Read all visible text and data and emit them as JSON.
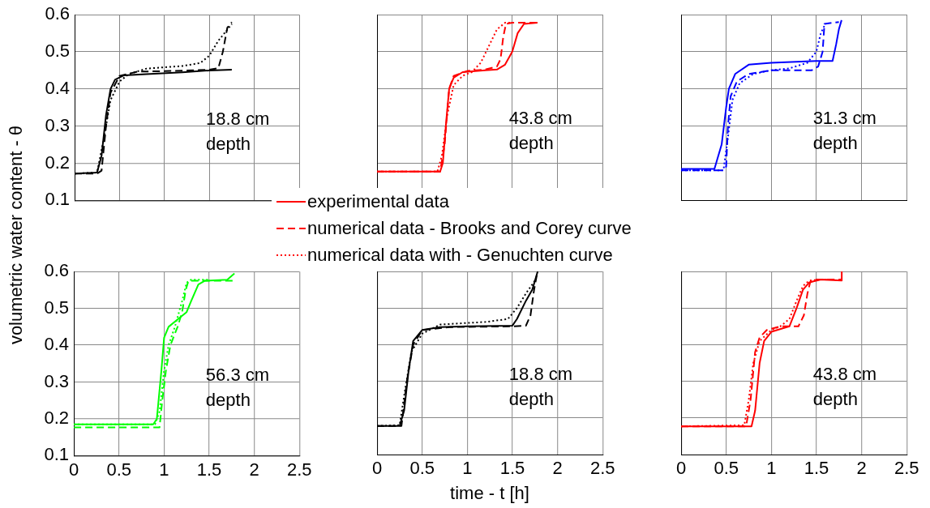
{
  "chart_data": [
    {
      "type": "line",
      "ylabel": "volumetric water content - θ",
      "annotations": [
        "18.8 cm\ndepth"
      ],
      "xlim": [
        0,
        2.5
      ],
      "ylim": [
        0.1,
        0.6
      ],
      "xticks": [
        0,
        0.5,
        1,
        1.5,
        2,
        2.5
      ],
      "yticks": [
        0.1,
        0.2,
        0.3,
        0.4,
        0.5,
        0.6
      ],
      "grid": true,
      "tick_labels": "y",
      "marker": "none",
      "series": [
        {
          "color": "#000000",
          "line_style": "solid",
          "x": [
            0,
            0.25,
            0.3,
            0.35,
            0.4,
            0.45,
            0.55,
            0.8,
            1.2,
            1.5,
            1.75
          ],
          "values": [
            0.172,
            0.175,
            0.22,
            0.33,
            0.4,
            0.425,
            0.437,
            0.44,
            0.445,
            0.45,
            0.452
          ]
        },
        {
          "color": "#000000",
          "line_style": "dashed",
          "x": [
            0,
            0.25,
            0.3,
            0.35,
            0.4,
            0.5,
            0.7,
            1.0,
            1.5,
            1.6,
            1.65,
            1.7,
            1.75
          ],
          "values": [
            0.172,
            0.172,
            0.18,
            0.3,
            0.39,
            0.435,
            0.447,
            0.448,
            0.452,
            0.456,
            0.5,
            0.565,
            0.58
          ]
        },
        {
          "color": "#000000",
          "line_style": "dotted",
          "x": [
            0,
            0.25,
            0.32,
            0.4,
            0.5,
            0.6,
            0.8,
            1.2,
            1.4,
            1.5,
            1.6,
            1.7,
            1.75
          ],
          "values": [
            0.172,
            0.175,
            0.26,
            0.37,
            0.42,
            0.44,
            0.455,
            0.462,
            0.47,
            0.49,
            0.53,
            0.56,
            0.575
          ]
        }
      ]
    },
    {
      "type": "line",
      "annotations": [
        "43.8 cm\ndepth"
      ],
      "xlim": [
        0,
        2.5
      ],
      "ylim": [
        0.1,
        0.6
      ],
      "xticks": [
        0,
        0.5,
        1,
        1.5,
        2,
        2.5
      ],
      "yticks": [
        0.1,
        0.2,
        0.3,
        0.4,
        0.5,
        0.6
      ],
      "grid": true,
      "tick_labels": false,
      "marker": "none",
      "legend": "bottom left",
      "series": [
        {
          "name": "experimental data",
          "color": "#ff0000",
          "line_style": "solid",
          "x": [
            0,
            0.7,
            0.73,
            0.77,
            0.8,
            0.85,
            0.95,
            1.2,
            1.33,
            1.42,
            1.5,
            1.56,
            1.63,
            1.78
          ],
          "values": [
            0.177,
            0.177,
            0.2,
            0.32,
            0.4,
            0.43,
            0.445,
            0.45,
            0.452,
            0.465,
            0.5,
            0.55,
            0.575,
            0.578
          ]
        },
        {
          "name": "numerical data - Brooks and Corey curve",
          "color": "#ff0000",
          "line_style": "dashed",
          "x": [
            0,
            0.7,
            0.75,
            0.8,
            0.85,
            1.0,
            1.2,
            1.33,
            1.37,
            1.4,
            1.43,
            1.5,
            1.78
          ],
          "values": [
            0.177,
            0.177,
            0.25,
            0.4,
            0.435,
            0.448,
            0.452,
            0.46,
            0.48,
            0.54,
            0.575,
            0.578,
            0.578
          ]
        },
        {
          "name": "numerical data with - Genuchten curve",
          "color": "#ff0000",
          "line_style": "dotted",
          "x": [
            0,
            0.67,
            0.72,
            0.78,
            0.85,
            0.95,
            1.05,
            1.15,
            1.25,
            1.33,
            1.42,
            1.5
          ],
          "values": [
            0.177,
            0.177,
            0.22,
            0.33,
            0.41,
            0.435,
            0.445,
            0.47,
            0.52,
            0.56,
            0.578,
            0.578
          ]
        }
      ]
    },
    {
      "type": "line",
      "annotations": [
        "31.3 cm\ndepth"
      ],
      "xlim": [
        0,
        2.5
      ],
      "ylim": [
        0.1,
        0.6
      ],
      "xticks": [
        0,
        0.5,
        1,
        1.5,
        2,
        2.5
      ],
      "yticks": [
        0.1,
        0.2,
        0.3,
        0.4,
        0.5,
        0.6
      ],
      "grid": true,
      "tick_labels": false,
      "marker": "none",
      "series": [
        {
          "color": "#0000ff",
          "line_style": "solid",
          "x": [
            0,
            0.37,
            0.45,
            0.5,
            0.53,
            0.6,
            0.75,
            1.0,
            1.5,
            1.68,
            1.72,
            1.75,
            1.78
          ],
          "values": [
            0.184,
            0.184,
            0.25,
            0.35,
            0.4,
            0.44,
            0.465,
            0.47,
            0.475,
            0.475,
            0.52,
            0.56,
            0.585
          ]
        },
        {
          "color": "#0000ff",
          "line_style": "dashed",
          "x": [
            0,
            0.45,
            0.5,
            0.52,
            0.55,
            0.62,
            0.75,
            1.0,
            1.45,
            1.52,
            1.57,
            1.59,
            1.75
          ],
          "values": [
            0.18,
            0.18,
            0.19,
            0.3,
            0.38,
            0.42,
            0.44,
            0.45,
            0.45,
            0.46,
            0.5,
            0.575,
            0.58
          ]
        },
        {
          "color": "#0000ff",
          "line_style": "dotted",
          "x": [
            0,
            0.47,
            0.52,
            0.57,
            0.65,
            0.8,
            1.0,
            1.2,
            1.4,
            1.5,
            1.55,
            1.6
          ],
          "values": [
            0.18,
            0.18,
            0.27,
            0.37,
            0.415,
            0.44,
            0.45,
            0.455,
            0.47,
            0.5,
            0.55,
            0.575
          ]
        }
      ]
    },
    {
      "type": "line",
      "annotations": [
        "56.3 cm\ndepth"
      ],
      "xlim": [
        0,
        2.5
      ],
      "ylim": [
        0.1,
        0.6
      ],
      "xticks": [
        0,
        0.5,
        1,
        1.5,
        2,
        2.5
      ],
      "yticks": [
        0.1,
        0.2,
        0.3,
        0.4,
        0.5,
        0.6
      ],
      "grid": true,
      "marker": "none",
      "series": [
        {
          "color": "#00ff00",
          "line_style": "solid",
          "x": [
            0,
            0.88,
            0.92,
            0.97,
            1.0,
            1.05,
            1.15,
            1.25,
            1.3,
            1.38,
            1.45,
            1.7,
            1.78
          ],
          "values": [
            0.185,
            0.185,
            0.2,
            0.33,
            0.42,
            0.45,
            0.47,
            0.49,
            0.52,
            0.565,
            0.575,
            0.578,
            0.595
          ]
        },
        {
          "color": "#00ff00",
          "line_style": "dashed",
          "x": [
            0,
            0.95,
            0.98,
            1.02,
            1.07,
            1.15,
            1.2,
            1.24,
            1.27,
            1.78
          ],
          "values": [
            0.177,
            0.177,
            0.25,
            0.33,
            0.4,
            0.45,
            0.49,
            0.55,
            0.575,
            0.575
          ]
        },
        {
          "color": "#00ff00",
          "line_style": "dotted",
          "x": [
            0,
            0.9,
            0.95,
            1.0,
            1.05,
            1.12,
            1.2,
            1.25,
            1.3,
            1.5
          ],
          "values": [
            0.185,
            0.185,
            0.22,
            0.33,
            0.4,
            0.45,
            0.52,
            0.57,
            0.578,
            0.578
          ]
        }
      ]
    },
    {
      "type": "line",
      "xlabel": "time - t [h]",
      "annotations": [
        "18.8 cm\ndepth"
      ],
      "xlim": [
        0,
        2.5
      ],
      "ylim": [
        0.1,
        0.6
      ],
      "xticks": [
        0,
        0.5,
        1,
        1.5,
        2,
        2.5
      ],
      "yticks": [
        0.1,
        0.2,
        0.3,
        0.4,
        0.5,
        0.6
      ],
      "grid": true,
      "tick_labels": "x",
      "marker": "none",
      "series": [
        {
          "color": "#000000",
          "line_style": "solid",
          "x": [
            0,
            0.25,
            0.3,
            0.35,
            0.4,
            0.5,
            0.7,
            1.0,
            1.5,
            1.55,
            1.65,
            1.72,
            1.78
          ],
          "values": [
            0.178,
            0.178,
            0.22,
            0.33,
            0.41,
            0.44,
            0.448,
            0.45,
            0.452,
            0.47,
            0.52,
            0.55,
            0.6
          ]
        },
        {
          "color": "#000000",
          "line_style": "dashed",
          "x": [
            0,
            0.27,
            0.33,
            0.4,
            0.5,
            0.8,
            1.5,
            1.65,
            1.7,
            1.74,
            1.77
          ],
          "values": [
            0.178,
            0.178,
            0.3,
            0.4,
            0.44,
            0.448,
            0.45,
            0.452,
            0.48,
            0.55,
            0.59
          ]
        },
        {
          "color": "#000000",
          "line_style": "dotted",
          "x": [
            0,
            0.25,
            0.3,
            0.38,
            0.5,
            0.7,
            1.2,
            1.45,
            1.55,
            1.65,
            1.75
          ],
          "values": [
            0.178,
            0.18,
            0.26,
            0.38,
            0.43,
            0.455,
            0.462,
            0.47,
            0.5,
            0.54,
            0.575
          ]
        }
      ]
    },
    {
      "type": "line",
      "annotations": [
        "43.8 cm\ndepth"
      ],
      "xlim": [
        0,
        2.5
      ],
      "ylim": [
        0.1,
        0.6
      ],
      "xticks": [
        0,
        0.5,
        1,
        1.5,
        2,
        2.5
      ],
      "yticks": [
        0.1,
        0.2,
        0.3,
        0.4,
        0.5,
        0.6
      ],
      "grid": true,
      "tick_labels": "x",
      "marker": "none",
      "series": [
        {
          "color": "#ff0000",
          "line_style": "solid",
          "x": [
            0,
            0.78,
            0.82,
            0.87,
            0.92,
            1.0,
            1.2,
            1.28,
            1.35,
            1.42,
            1.55,
            1.78,
            1.78
          ],
          "values": [
            0.177,
            0.177,
            0.22,
            0.35,
            0.41,
            0.435,
            0.45,
            0.5,
            0.55,
            0.57,
            0.578,
            0.575,
            0.6
          ]
        },
        {
          "color": "#ff0000",
          "line_style": "dashed",
          "x": [
            0,
            0.72,
            0.77,
            0.82,
            0.87,
            0.95,
            1.1,
            1.3,
            1.36,
            1.4,
            1.43,
            1.5,
            1.78
          ],
          "values": [
            0.177,
            0.177,
            0.25,
            0.38,
            0.42,
            0.44,
            0.45,
            0.45,
            0.48,
            0.54,
            0.57,
            0.578,
            0.578
          ]
        },
        {
          "color": "#ff0000",
          "line_style": "dotted",
          "x": [
            0,
            0.7,
            0.75,
            0.8,
            0.87,
            1.0,
            1.1,
            1.2,
            1.28,
            1.35,
            1.42,
            1.55
          ],
          "values": [
            0.177,
            0.18,
            0.25,
            0.35,
            0.41,
            0.44,
            0.45,
            0.47,
            0.52,
            0.56,
            0.575,
            0.578
          ]
        }
      ]
    }
  ]
}
